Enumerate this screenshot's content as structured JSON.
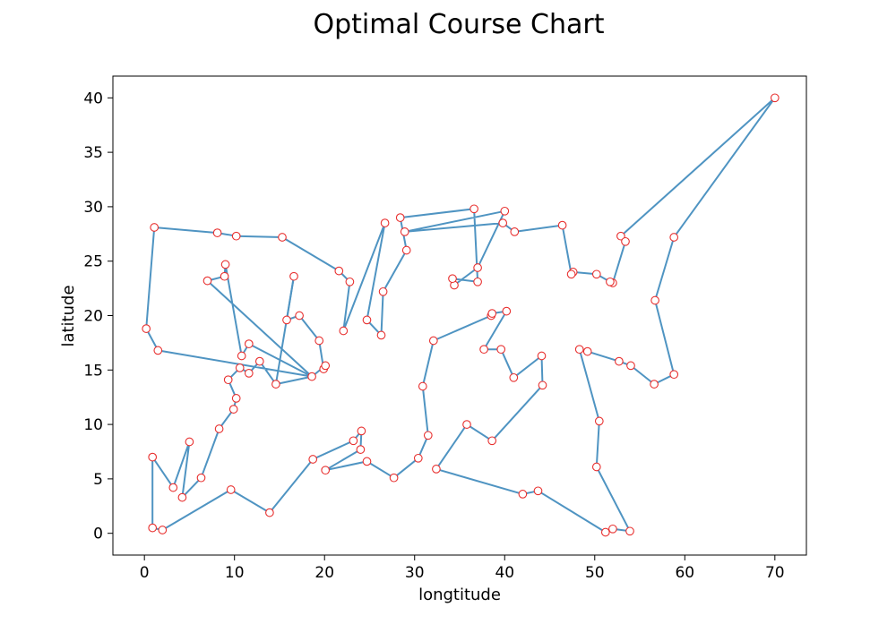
{
  "chart_data": {
    "type": "line",
    "title": "Optimal Course Chart",
    "xlabel": "longtitude",
    "ylabel": "latitude",
    "xlim": [
      -3.5,
      73.5
    ],
    "ylim": [
      -2.0,
      42.0
    ],
    "xticks": [
      0,
      10,
      20,
      30,
      40,
      50,
      60,
      70
    ],
    "yticks": [
      0,
      5,
      10,
      15,
      20,
      25,
      30,
      35,
      40
    ],
    "xtick_labels": [
      "0",
      "10",
      "20",
      "30",
      "40",
      "50",
      "60",
      "70"
    ],
    "ytick_labels": [
      "0",
      "5",
      "10",
      "15",
      "20",
      "25",
      "30",
      "35",
      "40"
    ],
    "grid": false,
    "line_color": "#4f94c2",
    "marker_edge_color": "#e8302f",
    "marker_face_color": "#ffffff",
    "series": [
      {
        "x": [
          70.0,
          52.9,
          53.4,
          52.0,
          51.7,
          50.2,
          47.6,
          47.4,
          46.4,
          41.1,
          39.8,
          28.9,
          40.0,
          37.0,
          34.4,
          34.2,
          37.0,
          36.6,
          28.4,
          29.1,
          26.5,
          26.3,
          24.7,
          26.7,
          22.1,
          22.8,
          21.6,
          15.3,
          10.2,
          8.1,
          1.1,
          0.2,
          1.5,
          18.6,
          11.6,
          10.8,
          9.0,
          8.9,
          7.0,
          18.6,
          14.6,
          12.8,
          11.6,
          10.6,
          9.3,
          10.2,
          9.9,
          8.3,
          6.3,
          4.2,
          5.0,
          3.2,
          0.9,
          0.9,
          2.0,
          9.6,
          13.9,
          18.7,
          23.2,
          24.1,
          24.0,
          20.1,
          24.7,
          27.7,
          30.4,
          31.5,
          30.9,
          32.1,
          38.5,
          38.6,
          40.2,
          37.7,
          39.6,
          41.0,
          44.1,
          44.2,
          38.6,
          35.8,
          32.4,
          42.0,
          43.7,
          51.2,
          52.0,
          53.9,
          50.2,
          50.5,
          48.3,
          49.2,
          52.7,
          54.0,
          56.6,
          58.8,
          56.7,
          58.8,
          70.0
        ],
        "y": [
          40.0,
          27.3,
          26.8,
          23.0,
          23.1,
          23.8,
          24.0,
          23.8,
          28.3,
          27.7,
          28.5,
          27.7,
          29.6,
          24.4,
          22.8,
          23.4,
          23.1,
          29.8,
          29.0,
          26.0,
          22.2,
          18.2,
          19.6,
          28.5,
          18.6,
          23.1,
          24.1,
          27.2,
          27.3,
          27.6,
          28.1,
          18.8,
          16.8,
          14.4,
          17.4,
          16.3,
          24.7,
          23.6,
          23.2,
          14.4,
          13.7,
          15.8,
          14.7,
          15.2,
          14.1,
          12.4,
          11.4,
          9.6,
          5.1,
          3.3,
          8.4,
          4.2,
          7.0,
          0.5,
          0.3,
          4.0,
          1.9,
          6.8,
          8.5,
          9.4,
          7.7,
          5.8,
          6.6,
          5.1,
          6.9,
          9.0,
          13.5,
          17.7,
          20.0,
          20.2,
          20.4,
          16.9,
          16.9,
          14.3,
          16.3,
          13.6,
          8.5,
          10.0,
          5.9,
          3.6,
          3.9,
          0.1,
          0.4,
          0.2,
          6.1,
          10.3,
          16.9,
          16.7,
          15.8,
          15.4,
          13.7,
          14.6,
          21.4,
          27.2,
          40.0
        ]
      },
      {
        "x": [
          16.6,
          15.8,
          17.2,
          19.4,
          19.9,
          20.1
        ],
        "y": [
          23.6,
          19.6,
          20.0,
          17.7,
          15.1,
          15.4
        ]
      }
    ],
    "bridge_points": {
      "x": [
        14.6,
        16.6,
        20.1,
        18.6
      ],
      "y": [
        13.7,
        23.6,
        15.4,
        14.4
      ]
    }
  }
}
